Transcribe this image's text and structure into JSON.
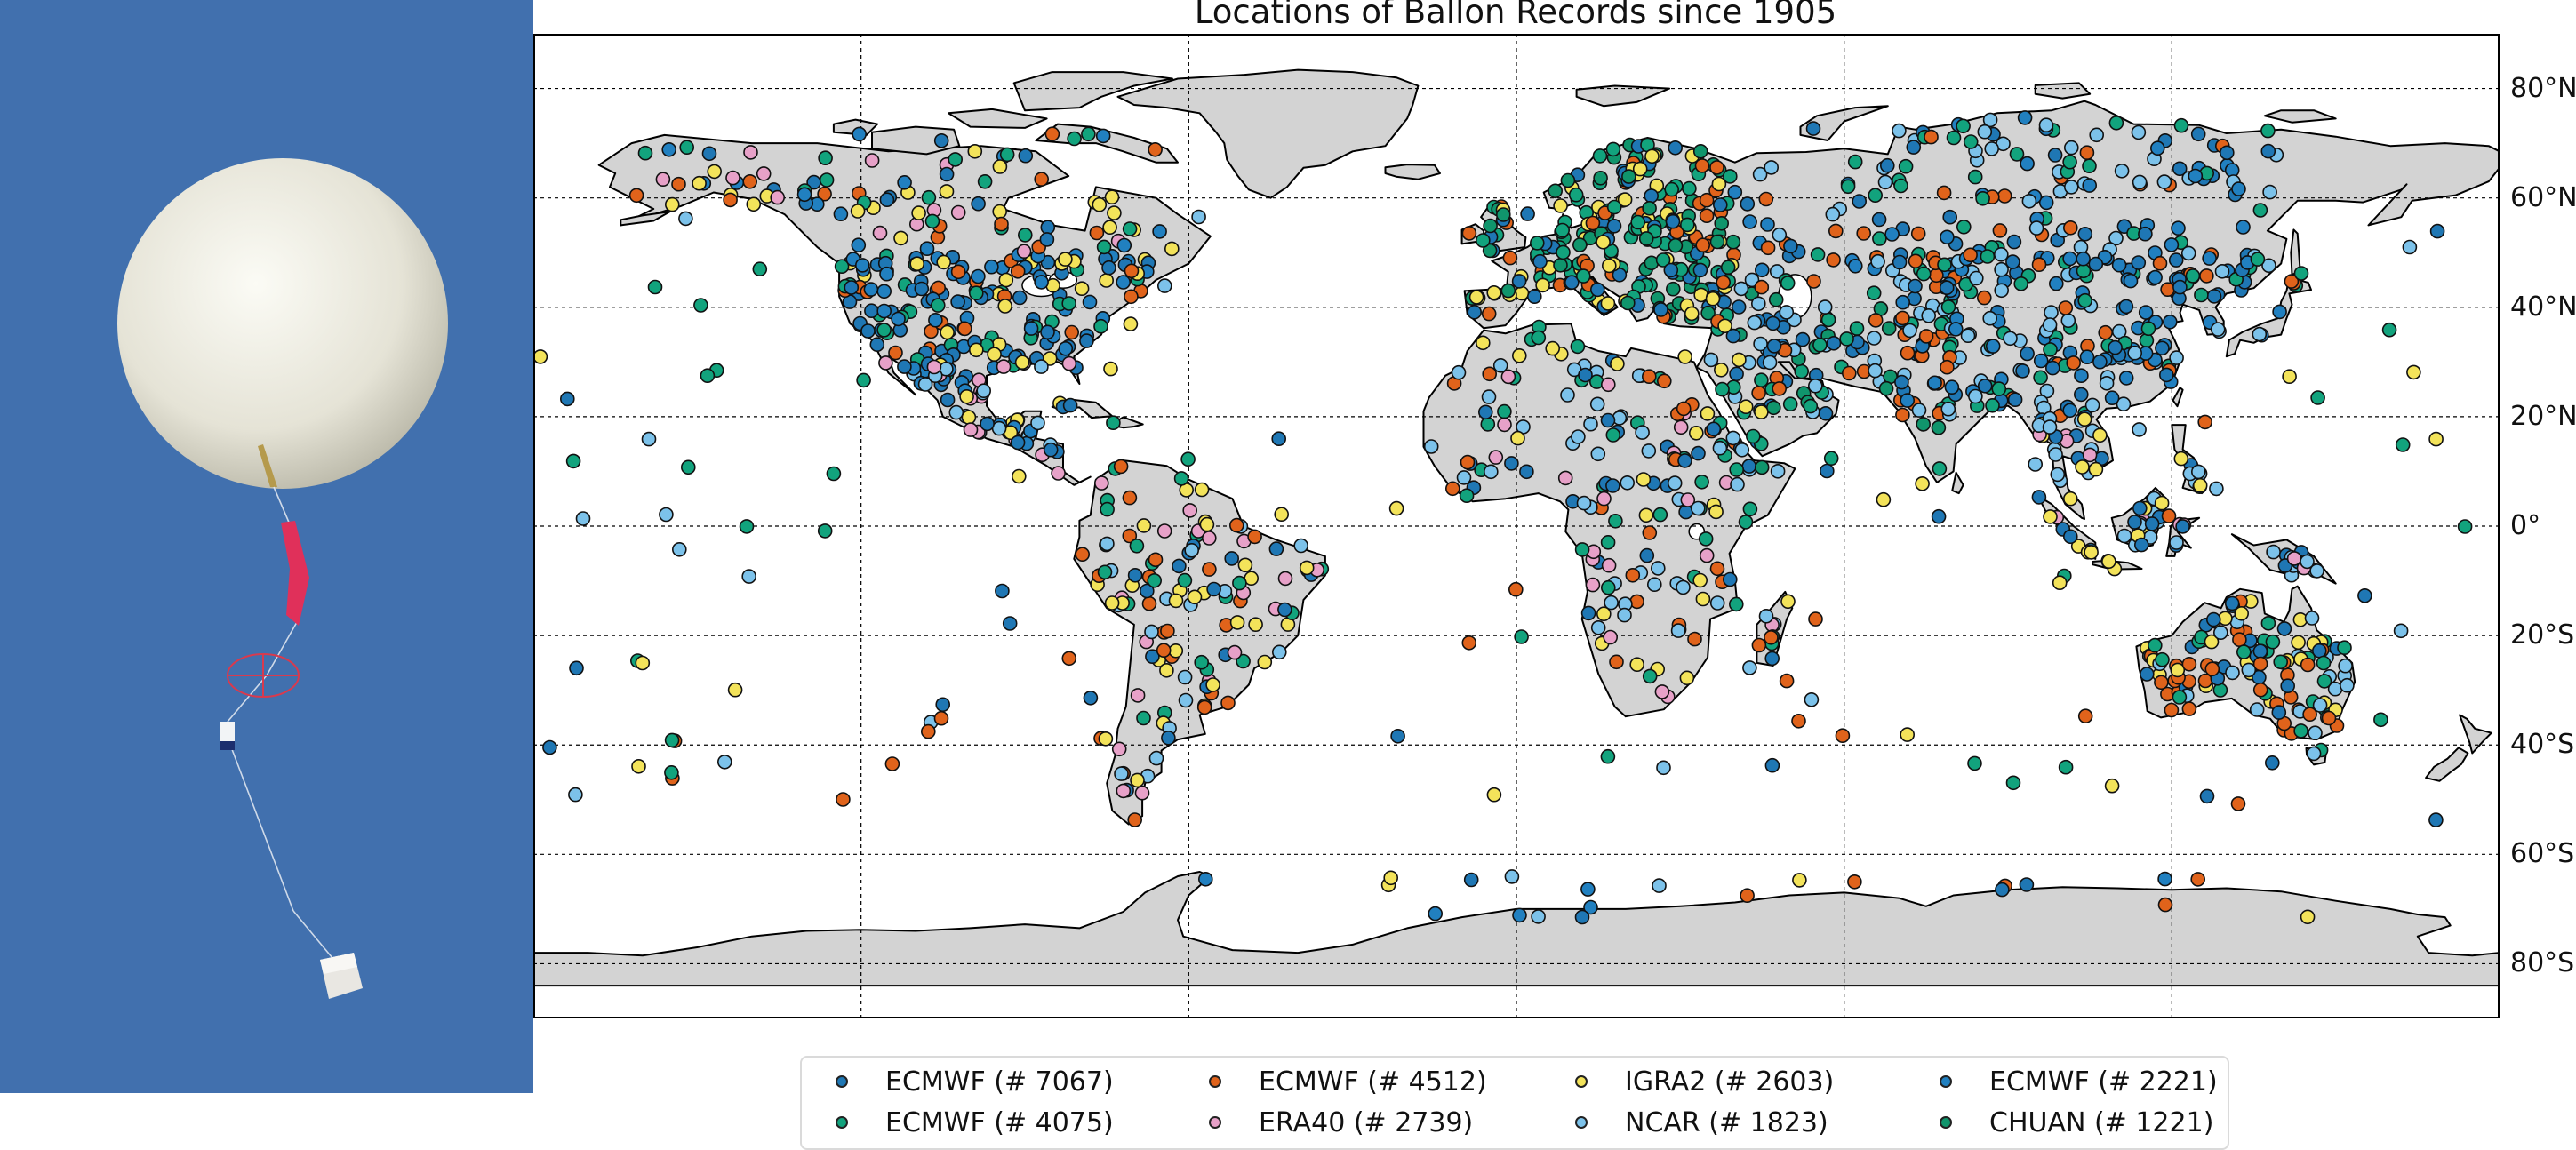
{
  "title": "Locations of Ballon Records since 1905",
  "colors": {
    "ocean": "#ffffff",
    "land": "#d3d3d3",
    "coast": "#000000",
    "grid": "#000000",
    "sky": "#4170ae",
    "balloon": "#efeee6",
    "parachute": "#e0305a"
  },
  "map": {
    "projection": "plate-carree",
    "lon_range": [
      -180,
      180
    ],
    "lat_range": [
      -90,
      90
    ],
    "meridians": [
      -120,
      -60,
      0,
      60,
      120
    ],
    "parallels": [
      -80,
      -60,
      -40,
      -20,
      0,
      20,
      40,
      60,
      80
    ],
    "parallel_labels": [
      "80°S",
      "60°S",
      "40°S",
      "20°S",
      "0°",
      "20°N",
      "40°N",
      "60°N",
      "80°N"
    ]
  },
  "legend": {
    "placement": "bottom-center",
    "items": [
      {
        "label": "ECMWF (# 7067)",
        "color": "#1f77b4"
      },
      {
        "label": "ECMWF (# 4075)",
        "color": "#12a37d"
      },
      {
        "label": "ECMWF (# 4512)",
        "color": "#e0631b"
      },
      {
        "label": "ERA40 (# 2739)",
        "color": "#e7a1c8"
      },
      {
        "label": "IGRA2 (# 2603)",
        "color": "#f3e35a"
      },
      {
        "label": "NCAR (# 1823)",
        "color": "#7cc2ea"
      },
      {
        "label": "ECMWF (# 2221)",
        "color": "#2180c0"
      },
      {
        "label": "CHUAN (# 1221)",
        "color": "#10956c"
      }
    ]
  },
  "photo_icons": [
    "balloon-icon",
    "parachute-icon",
    "radiosonde-icon"
  ]
}
